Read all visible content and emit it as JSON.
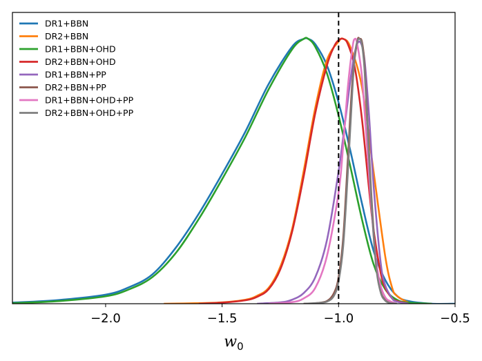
{
  "chart_data": {
    "type": "line",
    "xlabel": "w",
    "xlabel_sub": "0",
    "xlim": [
      -2.4,
      -0.5
    ],
    "xticks": [
      -2.0,
      -1.5,
      -1.0,
      -0.5
    ],
    "xtick_labels": [
      "−2.0",
      "−1.5",
      "−1.0",
      "−0.5"
    ],
    "ylim": [
      0,
      1.1
    ],
    "reference_line": {
      "x": -1.0,
      "style": "dashed",
      "color": "#000000"
    },
    "legend_position": "top-left",
    "grid": false,
    "series": [
      {
        "name": "DR1+BBN",
        "color": "#1f77b4",
        "x": [
          -2.4,
          -2.2,
          -2.0,
          -1.9,
          -1.8,
          -1.7,
          -1.6,
          -1.5,
          -1.4,
          -1.3,
          -1.2,
          -1.15,
          -1.13,
          -1.1,
          -1.05,
          -1.0,
          -0.95,
          -0.9,
          -0.85,
          -0.8,
          -0.75,
          -0.7,
          -0.6,
          -0.5
        ],
        "y": [
          0.004,
          0.014,
          0.034,
          0.062,
          0.11,
          0.21,
          0.34,
          0.49,
          0.65,
          0.83,
          0.97,
          1.0,
          1.0,
          0.98,
          0.9,
          0.76,
          0.58,
          0.38,
          0.2,
          0.09,
          0.03,
          0.01,
          0.0,
          0.0
        ]
      },
      {
        "name": "DR2+BBN",
        "color": "#ff7f0e",
        "x": [
          -1.75,
          -1.6,
          -1.5,
          -1.4,
          -1.35,
          -1.3,
          -1.25,
          -1.2,
          -1.15,
          -1.1,
          -1.05,
          -1.0,
          -0.98,
          -0.95,
          -0.9,
          -0.85,
          -0.8,
          -0.77,
          -0.75,
          -0.7,
          -0.65
        ],
        "y": [
          0.0,
          0.002,
          0.005,
          0.015,
          0.03,
          0.06,
          0.14,
          0.28,
          0.5,
          0.74,
          0.92,
          0.99,
          1.0,
          0.97,
          0.82,
          0.5,
          0.18,
          0.06,
          0.03,
          0.005,
          0.0
        ]
      },
      {
        "name": "DR1+BBN+OHD",
        "color": "#2ca02c",
        "x": [
          -2.4,
          -2.2,
          -2.0,
          -1.9,
          -1.8,
          -1.7,
          -1.6,
          -1.5,
          -1.4,
          -1.3,
          -1.2,
          -1.15,
          -1.13,
          -1.1,
          -1.05,
          -1.0,
          -0.95,
          -0.9,
          -0.85,
          -0.8,
          -0.75,
          -0.7,
          -0.6
        ],
        "y": [
          0.002,
          0.01,
          0.028,
          0.054,
          0.1,
          0.19,
          0.32,
          0.47,
          0.63,
          0.81,
          0.96,
          1.0,
          1.0,
          0.97,
          0.87,
          0.71,
          0.52,
          0.32,
          0.15,
          0.055,
          0.015,
          0.004,
          0.0
        ]
      },
      {
        "name": "DR2+BBN+OHD",
        "color": "#d62728",
        "x": [
          -1.6,
          -1.5,
          -1.4,
          -1.35,
          -1.3,
          -1.25,
          -1.2,
          -1.15,
          -1.1,
          -1.05,
          -1.02,
          -1.0,
          -0.98,
          -0.96,
          -0.93,
          -0.9,
          -0.87,
          -0.85,
          -0.82,
          -0.8,
          -0.77,
          -0.75,
          -0.7
        ],
        "y": [
          0.0,
          0.004,
          0.013,
          0.026,
          0.055,
          0.13,
          0.27,
          0.48,
          0.72,
          0.9,
          0.97,
          0.995,
          1.0,
          0.98,
          0.89,
          0.7,
          0.44,
          0.28,
          0.12,
          0.06,
          0.02,
          0.01,
          0.0
        ]
      },
      {
        "name": "DR1+BBN+PP",
        "color": "#9467bd",
        "x": [
          -1.35,
          -1.25,
          -1.2,
          -1.15,
          -1.1,
          -1.05,
          -1.0,
          -0.97,
          -0.95,
          -0.93,
          -0.91,
          -0.89,
          -0.87,
          -0.85,
          -0.82,
          -0.8,
          -0.77,
          -0.75,
          -0.7
        ],
        "y": [
          0.0,
          0.005,
          0.015,
          0.04,
          0.1,
          0.24,
          0.5,
          0.7,
          0.84,
          0.95,
          0.99,
          0.93,
          0.72,
          0.45,
          0.16,
          0.07,
          0.02,
          0.008,
          0.0
        ]
      },
      {
        "name": "DR2+BBN+PP",
        "color": "#8c564b",
        "x": [
          -1.15,
          -1.1,
          -1.05,
          -1.02,
          -1.0,
          -0.98,
          -0.96,
          -0.94,
          -0.92,
          -0.91,
          -0.9,
          -0.89,
          -0.88,
          -0.86,
          -0.84,
          -0.82,
          -0.8,
          -0.78,
          -0.75
        ],
        "y": [
          0.0,
          0.002,
          0.01,
          0.04,
          0.1,
          0.25,
          0.55,
          0.85,
          0.99,
          1.0,
          0.99,
          0.92,
          0.76,
          0.42,
          0.17,
          0.05,
          0.015,
          0.004,
          0.0
        ]
      },
      {
        "name": "DR1+BBN+OHD+PP",
        "color": "#e377c2",
        "x": [
          -1.3,
          -1.2,
          -1.15,
          -1.1,
          -1.05,
          -1.0,
          -0.98,
          -0.96,
          -0.94,
          -0.93,
          -0.92,
          -0.9,
          -0.88,
          -0.86,
          -0.84,
          -0.82,
          -0.8,
          -0.78,
          -0.75
        ],
        "y": [
          0.0,
          0.006,
          0.02,
          0.06,
          0.18,
          0.42,
          0.6,
          0.82,
          0.97,
          1.0,
          0.98,
          0.86,
          0.62,
          0.37,
          0.17,
          0.07,
          0.025,
          0.01,
          0.0
        ]
      },
      {
        "name": "DR2+BBN+OHD+PP",
        "color": "#7f7f7f",
        "x": [
          -1.15,
          -1.1,
          -1.05,
          -1.02,
          -1.0,
          -0.98,
          -0.96,
          -0.94,
          -0.93,
          -0.92,
          -0.91,
          -0.9,
          -0.89,
          -0.88,
          -0.86,
          -0.84,
          -0.82,
          -0.8,
          -0.78,
          -0.75
        ],
        "y": [
          0.0,
          0.002,
          0.008,
          0.03,
          0.085,
          0.22,
          0.5,
          0.82,
          0.94,
          0.99,
          1.0,
          0.98,
          0.9,
          0.74,
          0.4,
          0.15,
          0.045,
          0.012,
          0.003,
          0.0
        ]
      }
    ]
  }
}
